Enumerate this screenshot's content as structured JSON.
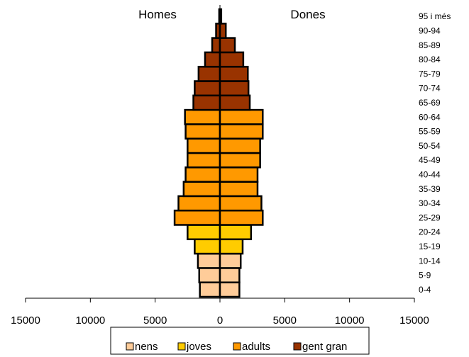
{
  "chart_data": {
    "type": "bar",
    "orientation": "horizontal",
    "subtype": "population-pyramid",
    "categories": [
      "0-4",
      "5-9",
      "10-14",
      "15-19",
      "20-24",
      "25-29",
      "30-34",
      "35-39",
      "40-44",
      "45-49",
      "50-54",
      "55-59",
      "60-64",
      "65-69",
      "70-74",
      "75-79",
      "80-84",
      "85-89",
      "90-94",
      "95 i més"
    ],
    "series": [
      {
        "name": "Homes",
        "values": [
          1550,
          1600,
          1700,
          1950,
          2500,
          3500,
          3200,
          2800,
          2650,
          2500,
          2500,
          2650,
          2700,
          2050,
          1950,
          1650,
          1150,
          600,
          300,
          60
        ]
      },
      {
        "name": "Dones",
        "values": [
          1500,
          1500,
          1600,
          1750,
          2400,
          3300,
          3200,
          2900,
          2900,
          3100,
          3100,
          3300,
          3300,
          2300,
          2200,
          2150,
          1800,
          1150,
          450,
          100
        ]
      }
    ],
    "groups": [
      {
        "name": "nens",
        "categories": [
          "0-4",
          "5-9",
          "10-14"
        ],
        "color": "#FFCC99"
      },
      {
        "name": "joves",
        "categories": [
          "15-19",
          "20-24"
        ],
        "color": "#FFCC00"
      },
      {
        "name": "adults",
        "categories": [
          "25-29",
          "30-34",
          "35-39",
          "40-44",
          "45-49",
          "50-54",
          "55-59",
          "60-64"
        ],
        "color": "#FF9900"
      },
      {
        "name": "gent gran",
        "categories": [
          "65-69",
          "70-74",
          "75-79",
          "80-84",
          "85-89",
          "90-94",
          "95 i més"
        ],
        "color": "#993300"
      }
    ],
    "side_titles": {
      "left": "Homes",
      "right": "Dones"
    },
    "xlim": [
      -15000,
      15000
    ],
    "x_ticks": [
      "15000",
      "10000",
      "5000",
      "0",
      "5000",
      "10000",
      "15000"
    ],
    "legend": {
      "position": "bottom",
      "entries": [
        "nens",
        "joves",
        "adults",
        "gent gran"
      ]
    },
    "grid": false
  }
}
